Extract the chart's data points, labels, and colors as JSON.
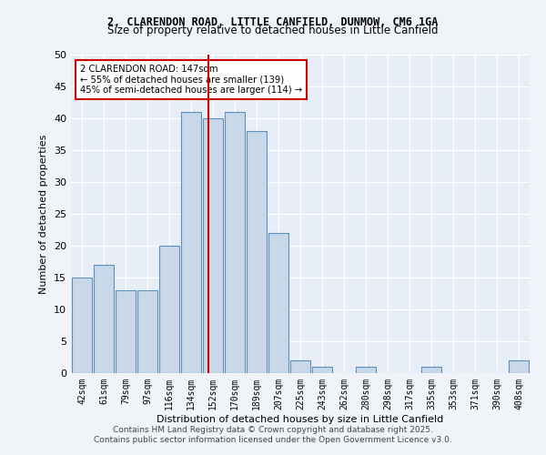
{
  "title_line1": "2, CLARENDON ROAD, LITTLE CANFIELD, DUNMOW, CM6 1GA",
  "title_line2": "Size of property relative to detached houses in Little Canfield",
  "xlabel": "Distribution of detached houses by size in Little Canfield",
  "ylabel": "Number of detached properties",
  "footer_line1": "Contains HM Land Registry data © Crown copyright and database right 2025.",
  "footer_line2": "Contains public sector information licensed under the Open Government Licence v3.0.",
  "categories": [
    "42sqm",
    "61sqm",
    "79sqm",
    "97sqm",
    "116sqm",
    "134sqm",
    "152sqm",
    "170sqm",
    "189sqm",
    "207sqm",
    "225sqm",
    "243sqm",
    "262sqm",
    "280sqm",
    "298sqm",
    "317sqm",
    "335sqm",
    "353sqm",
    "371sqm",
    "390sqm",
    "408sqm"
  ],
  "values": [
    15,
    17,
    13,
    13,
    20,
    41,
    40,
    41,
    38,
    22,
    2,
    1,
    0,
    1,
    0,
    0,
    1,
    0,
    0,
    0,
    2
  ],
  "bar_color": "#c8d8e8",
  "bar_edge_color": "#5b8fbe",
  "background_color": "#e8eef8",
  "grid_color": "#ffffff",
  "red_line_x": 6.5,
  "annotation_text_line1": "2 CLARENDON ROAD: 147sqm",
  "annotation_text_line2": "← 55% of detached houses are smaller (139)",
  "annotation_text_line3": "45% of semi-detached houses are larger (114) →",
  "annotation_box_color": "#ffffff",
  "annotation_box_edge": "#cc0000",
  "ylim": [
    0,
    50
  ],
  "yticks": [
    0,
    5,
    10,
    15,
    20,
    25,
    30,
    35,
    40,
    45,
    50
  ]
}
